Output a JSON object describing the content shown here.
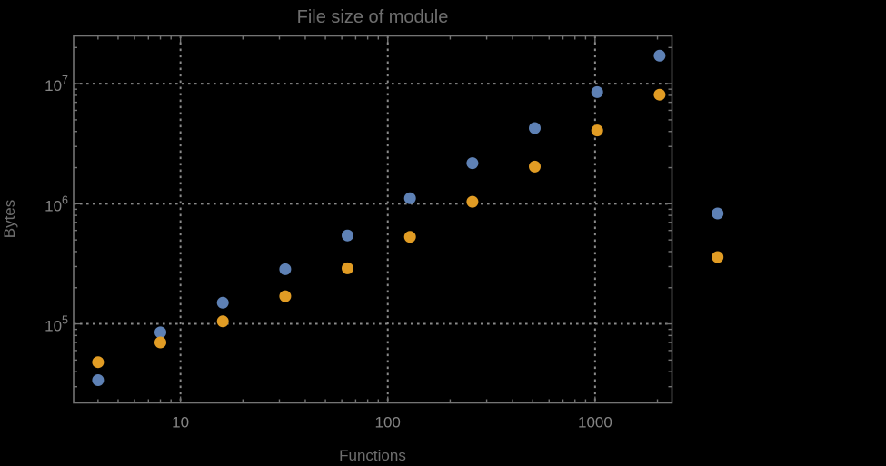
{
  "page": {
    "background": "#000000"
  },
  "chart_data": {
    "type": "scatter",
    "title": "File size of module",
    "xlabel": "Functions",
    "ylabel": "Bytes",
    "x_scale": "log",
    "y_scale": "log",
    "xlim": [
      3.05,
      2350
    ],
    "ylim": [
      22000,
      25000000
    ],
    "x_ticks": [
      {
        "value": 10,
        "label": "10"
      },
      {
        "value": 100,
        "label": "100"
      },
      {
        "value": 1000,
        "label": "1000"
      }
    ],
    "y_ticks": [
      {
        "value": 100000,
        "base": "10",
        "exponent": "5"
      },
      {
        "value": 1000000,
        "base": "10",
        "exponent": "6"
      },
      {
        "value": 10000000,
        "base": "10",
        "exponent": "7"
      }
    ],
    "grid": {
      "style": "dotted",
      "color": "#8a8a8a",
      "at_x": [
        10,
        100,
        1000
      ],
      "at_y": [
        100000,
        1000000,
        10000000
      ]
    },
    "frame_color": "#747474",
    "title_color": "#6e6e6e",
    "tick_label_color": "#848484",
    "legend": "none",
    "marker_diameter_px": 13,
    "series": [
      {
        "name": "blue",
        "color": "#5E81B5",
        "points": [
          [
            4,
            34000
          ],
          [
            8,
            85000
          ],
          [
            16,
            150000
          ],
          [
            32,
            285000
          ],
          [
            64,
            545000
          ],
          [
            128,
            1110000
          ],
          [
            256,
            2180000
          ],
          [
            512,
            4270000
          ],
          [
            1024,
            8500000
          ],
          [
            2048,
            17100000
          ],
          [
            3900,
            830000
          ]
        ]
      },
      {
        "name": "orange",
        "color": "#E19C24",
        "points": [
          [
            4,
            48000
          ],
          [
            8,
            70000
          ],
          [
            16,
            105000
          ],
          [
            32,
            170000
          ],
          [
            64,
            290000
          ],
          [
            128,
            530000
          ],
          [
            256,
            1040000
          ],
          [
            512,
            2040000
          ],
          [
            1024,
            4080000
          ],
          [
            2048,
            8100000
          ],
          [
            3900,
            360000
          ]
        ]
      }
    ]
  }
}
